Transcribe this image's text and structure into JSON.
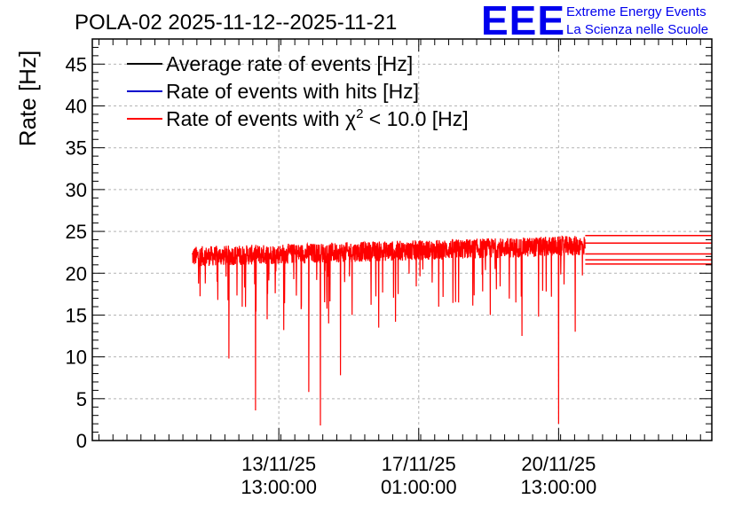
{
  "header": {
    "title": "POLA-02 2025-11-12--2025-11-21",
    "logo_text": "EEE",
    "logo_line1": "Extreme Energy Events",
    "logo_line2": "La Scienza nelle Scuole",
    "logo_color": "#0000ee"
  },
  "chart_data": {
    "type": "line",
    "title": "POLA-02 2025-11-12--2025-11-21",
    "ylabel": "Rate [Hz]",
    "xlabel": "",
    "ylim": [
      0,
      48
    ],
    "yticks": [
      0,
      5,
      10,
      15,
      20,
      25,
      30,
      35,
      40,
      45
    ],
    "ytick_labels": [
      "0",
      "5",
      "10",
      "15",
      "20",
      "25",
      "30",
      "35",
      "40",
      "45"
    ],
    "x_range_hours": [
      -100,
      272
    ],
    "xticks": [
      {
        "hours": 12,
        "line1": "13/11/25",
        "line2": "13:00:00"
      },
      {
        "hours": 96,
        "line1": "17/11/25",
        "line2": "01:00:00"
      },
      {
        "hours": 180,
        "line1": "20/11/25",
        "line2": "13:00:00"
      }
    ],
    "x_origin": "13/11/25 13:00:00",
    "x_units": "hours from origin",
    "grid": true,
    "legend": {
      "position": "top-left",
      "entries": [
        {
          "label": "Average rate of events [Hz]",
          "color": "#000000"
        },
        {
          "label": "Rate of events with hits [Hz]",
          "color": "#0000cc"
        },
        {
          "label_prefix": "Rate of events with ",
          "symbol": "χ",
          "superscript": "2",
          "label_suffix": " < 10.0 [Hz]",
          "color": "#ff0000"
        }
      ]
    },
    "series": [
      {
        "name": "Rate of events with χ2 < 10.0 [Hz]",
        "color": "#ff0000",
        "start_hours": -40,
        "end_hours": 196,
        "baseline_start": 22.0,
        "baseline_end": 23.3,
        "noise_amplitude": 1.2,
        "dips": [
          {
            "hours": -25,
            "value": 19.0
          },
          {
            "hours": -18,
            "value": 9.8
          },
          {
            "hours": -10,
            "value": 16.0
          },
          {
            "hours": -2,
            "value": 3.6
          },
          {
            "hours": 5,
            "value": 14.5
          },
          {
            "hours": 15,
            "value": 13.2
          },
          {
            "hours": 30,
            "value": 5.8
          },
          {
            "hours": 37,
            "value": 1.8
          },
          {
            "hours": 42,
            "value": 14.0
          },
          {
            "hours": 49,
            "value": 7.8
          },
          {
            "hours": 56,
            "value": 15.0
          },
          {
            "hours": 72,
            "value": 13.5
          },
          {
            "hours": 82,
            "value": 14.2
          },
          {
            "hours": 108,
            "value": 16.0
          },
          {
            "hours": 120,
            "value": 16.5
          },
          {
            "hours": 139,
            "value": 15.0
          },
          {
            "hours": 158,
            "value": 12.5
          },
          {
            "hours": 168,
            "value": 14.8
          },
          {
            "hours": 180,
            "value": 2.0
          },
          {
            "hours": 190,
            "value": 13.0
          }
        ],
        "trailing_levels": [
          24.5,
          23.6,
          22.3,
          21.6,
          21.1
        ],
        "trailing_end_hours": 272
      }
    ]
  }
}
